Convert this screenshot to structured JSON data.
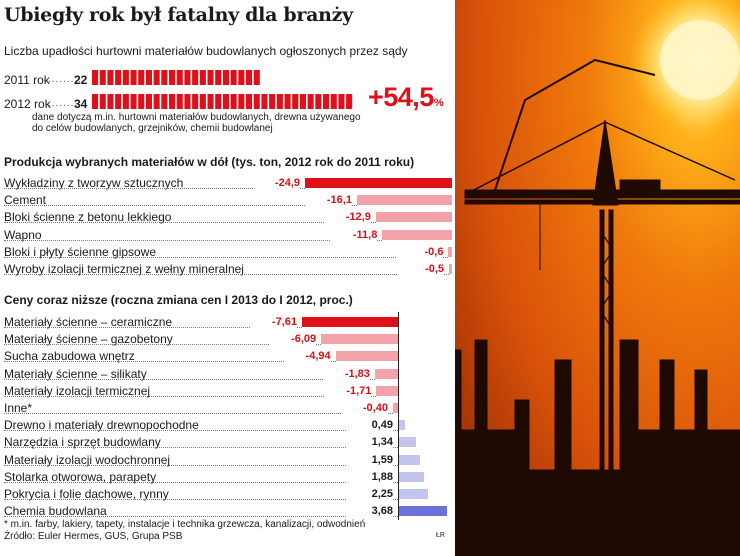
{
  "title": "Ubiegły rok był fatalny dla branży",
  "subtitle": "Liczba upadłości hurtowni materiałów budowlanych ogłoszonych przez sądy",
  "bankruptcies": {
    "rows": [
      {
        "label": "2011 rok",
        "value": "22",
        "count": 22
      },
      {
        "label": "2012 rok",
        "value": "34",
        "count": 34
      }
    ],
    "change": "+54,5",
    "change_unit": "%",
    "note": "dane dotyczą m.in. hurtowni materiałów budowlanych, drewna używanego do celów budowlanych, grzejników, chemii budowlanej",
    "color": "#e0101a"
  },
  "chart_data": [
    {
      "type": "bar",
      "title": "Produkcja wybranych materiałów w dół (tys. ton, 2012 rok do 2011 roku)",
      "categories": [
        "Wykładziny z tworzyw sztucznych",
        "Cement",
        "Bloki ścienne z betonu lekkiego",
        "Wapno",
        "Bloki i płyty ścienne gipsowe",
        "Wyroby izolacji termicznej z wełny mineralnej"
      ],
      "labels": [
        "-24,9",
        "-16,1",
        "-12,9",
        "-11,8",
        "-0,6",
        "-0,5"
      ],
      "values": [
        -24.9,
        -16.1,
        -12.9,
        -11.8,
        -0.6,
        -0.5
      ],
      "highlight_color": "#e0101a",
      "bar_color": "#f1a3a9"
    },
    {
      "type": "bar",
      "title": "Ceny coraz niższe (roczna zmiana cen I 2013 do I 2012, proc.)",
      "categories": [
        "Materiały ścienne – ceramiczne",
        "Materiały ścienne – gazobetony",
        "Sucha zabudowa wnętrz",
        "Materiały ścienne – silikaty",
        "Materiały izolacji termicznej",
        "Inne*",
        "Drewno i materiały drewnopochodne",
        "Narzędzia i sprzęt budowlany",
        "Materiały izolacji wodochronnej",
        "Stolarka otworowa, parapety",
        "Pokrycia i folie dachowe, rynny",
        "Chemia budowlana"
      ],
      "labels": [
        "-7,61",
        "-6,09",
        "-4,94",
        "-1,83",
        "-1,71",
        "-0,40",
        "0,49",
        "1,34",
        "1,59",
        "1,88",
        "2,25",
        "3,68"
      ],
      "values": [
        -7.61,
        -6.09,
        -4.94,
        -1.83,
        -1.71,
        -0.4,
        0.49,
        1.34,
        1.59,
        1.88,
        2.25,
        3.68
      ],
      "negative_color": "#f1a3a9",
      "highlight_color": "#e0101a",
      "positive_color": "#c3c5ee",
      "positive_highlight_color": "#6d72d8"
    }
  ],
  "footnote": "* m.in. farby, lakiery, tapety, instalacje i technika grzewcza, kanalizacji, odwodnień",
  "source": "Źródło: Euler Hermes, GUS, Grupa PSB",
  "credit": "ŁR"
}
